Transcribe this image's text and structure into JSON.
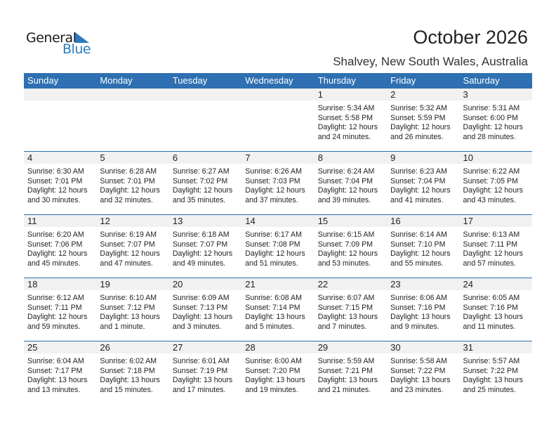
{
  "logo": {
    "line1": "General",
    "line2": "Blue"
  },
  "title": "October 2026",
  "location": "Shalvey, New South Wales, Australia",
  "colors": {
    "header": "#2E70B1",
    "day_band": "#F1F1F1"
  },
  "weekdays": [
    "Sunday",
    "Monday",
    "Tuesday",
    "Wednesday",
    "Thursday",
    "Friday",
    "Saturday"
  ],
  "weeks": [
    {
      "days": [
        {},
        {},
        {},
        {},
        {
          "day": "1",
          "sunrise": "Sunrise: 5:34 AM",
          "sunset": "Sunset: 5:58 PM",
          "daylight1": "Daylight: 12 hours",
          "daylight2": "and 24 minutes."
        },
        {
          "day": "2",
          "sunrise": "Sunrise: 5:32 AM",
          "sunset": "Sunset: 5:59 PM",
          "daylight1": "Daylight: 12 hours",
          "daylight2": "and 26 minutes."
        },
        {
          "day": "3",
          "sunrise": "Sunrise: 5:31 AM",
          "sunset": "Sunset: 6:00 PM",
          "daylight1": "Daylight: 12 hours",
          "daylight2": "and 28 minutes."
        }
      ]
    },
    {
      "days": [
        {
          "day": "4",
          "sunrise": "Sunrise: 6:30 AM",
          "sunset": "Sunset: 7:01 PM",
          "daylight1": "Daylight: 12 hours",
          "daylight2": "and 30 minutes."
        },
        {
          "day": "5",
          "sunrise": "Sunrise: 6:28 AM",
          "sunset": "Sunset: 7:01 PM",
          "daylight1": "Daylight: 12 hours",
          "daylight2": "and 32 minutes."
        },
        {
          "day": "6",
          "sunrise": "Sunrise: 6:27 AM",
          "sunset": "Sunset: 7:02 PM",
          "daylight1": "Daylight: 12 hours",
          "daylight2": "and 35 minutes."
        },
        {
          "day": "7",
          "sunrise": "Sunrise: 6:26 AM",
          "sunset": "Sunset: 7:03 PM",
          "daylight1": "Daylight: 12 hours",
          "daylight2": "and 37 minutes."
        },
        {
          "day": "8",
          "sunrise": "Sunrise: 6:24 AM",
          "sunset": "Sunset: 7:04 PM",
          "daylight1": "Daylight: 12 hours",
          "daylight2": "and 39 minutes."
        },
        {
          "day": "9",
          "sunrise": "Sunrise: 6:23 AM",
          "sunset": "Sunset: 7:04 PM",
          "daylight1": "Daylight: 12 hours",
          "daylight2": "and 41 minutes."
        },
        {
          "day": "10",
          "sunrise": "Sunrise: 6:22 AM",
          "sunset": "Sunset: 7:05 PM",
          "daylight1": "Daylight: 12 hours",
          "daylight2": "and 43 minutes."
        }
      ]
    },
    {
      "days": [
        {
          "day": "11",
          "sunrise": "Sunrise: 6:20 AM",
          "sunset": "Sunset: 7:06 PM",
          "daylight1": "Daylight: 12 hours",
          "daylight2": "and 45 minutes."
        },
        {
          "day": "12",
          "sunrise": "Sunrise: 6:19 AM",
          "sunset": "Sunset: 7:07 PM",
          "daylight1": "Daylight: 12 hours",
          "daylight2": "and 47 minutes."
        },
        {
          "day": "13",
          "sunrise": "Sunrise: 6:18 AM",
          "sunset": "Sunset: 7:07 PM",
          "daylight1": "Daylight: 12 hours",
          "daylight2": "and 49 minutes."
        },
        {
          "day": "14",
          "sunrise": "Sunrise: 6:17 AM",
          "sunset": "Sunset: 7:08 PM",
          "daylight1": "Daylight: 12 hours",
          "daylight2": "and 51 minutes."
        },
        {
          "day": "15",
          "sunrise": "Sunrise: 6:15 AM",
          "sunset": "Sunset: 7:09 PM",
          "daylight1": "Daylight: 12 hours",
          "daylight2": "and 53 minutes."
        },
        {
          "day": "16",
          "sunrise": "Sunrise: 6:14 AM",
          "sunset": "Sunset: 7:10 PM",
          "daylight1": "Daylight: 12 hours",
          "daylight2": "and 55 minutes."
        },
        {
          "day": "17",
          "sunrise": "Sunrise: 6:13 AM",
          "sunset": "Sunset: 7:11 PM",
          "daylight1": "Daylight: 12 hours",
          "daylight2": "and 57 minutes."
        }
      ]
    },
    {
      "days": [
        {
          "day": "18",
          "sunrise": "Sunrise: 6:12 AM",
          "sunset": "Sunset: 7:11 PM",
          "daylight1": "Daylight: 12 hours",
          "daylight2": "and 59 minutes."
        },
        {
          "day": "19",
          "sunrise": "Sunrise: 6:10 AM",
          "sunset": "Sunset: 7:12 PM",
          "daylight1": "Daylight: 13 hours",
          "daylight2": "and 1 minute."
        },
        {
          "day": "20",
          "sunrise": "Sunrise: 6:09 AM",
          "sunset": "Sunset: 7:13 PM",
          "daylight1": "Daylight: 13 hours",
          "daylight2": "and 3 minutes."
        },
        {
          "day": "21",
          "sunrise": "Sunrise: 6:08 AM",
          "sunset": "Sunset: 7:14 PM",
          "daylight1": "Daylight: 13 hours",
          "daylight2": "and 5 minutes."
        },
        {
          "day": "22",
          "sunrise": "Sunrise: 6:07 AM",
          "sunset": "Sunset: 7:15 PM",
          "daylight1": "Daylight: 13 hours",
          "daylight2": "and 7 minutes."
        },
        {
          "day": "23",
          "sunrise": "Sunrise: 6:06 AM",
          "sunset": "Sunset: 7:16 PM",
          "daylight1": "Daylight: 13 hours",
          "daylight2": "and 9 minutes."
        },
        {
          "day": "24",
          "sunrise": "Sunrise: 6:05 AM",
          "sunset": "Sunset: 7:16 PM",
          "daylight1": "Daylight: 13 hours",
          "daylight2": "and 11 minutes."
        }
      ]
    },
    {
      "days": [
        {
          "day": "25",
          "sunrise": "Sunrise: 6:04 AM",
          "sunset": "Sunset: 7:17 PM",
          "daylight1": "Daylight: 13 hours",
          "daylight2": "and 13 minutes."
        },
        {
          "day": "26",
          "sunrise": "Sunrise: 6:02 AM",
          "sunset": "Sunset: 7:18 PM",
          "daylight1": "Daylight: 13 hours",
          "daylight2": "and 15 minutes."
        },
        {
          "day": "27",
          "sunrise": "Sunrise: 6:01 AM",
          "sunset": "Sunset: 7:19 PM",
          "daylight1": "Daylight: 13 hours",
          "daylight2": "and 17 minutes."
        },
        {
          "day": "28",
          "sunrise": "Sunrise: 6:00 AM",
          "sunset": "Sunset: 7:20 PM",
          "daylight1": "Daylight: 13 hours",
          "daylight2": "and 19 minutes."
        },
        {
          "day": "29",
          "sunrise": "Sunrise: 5:59 AM",
          "sunset": "Sunset: 7:21 PM",
          "daylight1": "Daylight: 13 hours",
          "daylight2": "and 21 minutes."
        },
        {
          "day": "30",
          "sunrise": "Sunrise: 5:58 AM",
          "sunset": "Sunset: 7:22 PM",
          "daylight1": "Daylight: 13 hours",
          "daylight2": "and 23 minutes."
        },
        {
          "day": "31",
          "sunrise": "Sunrise: 5:57 AM",
          "sunset": "Sunset: 7:22 PM",
          "daylight1": "Daylight: 13 hours",
          "daylight2": "and 25 minutes."
        }
      ]
    }
  ]
}
